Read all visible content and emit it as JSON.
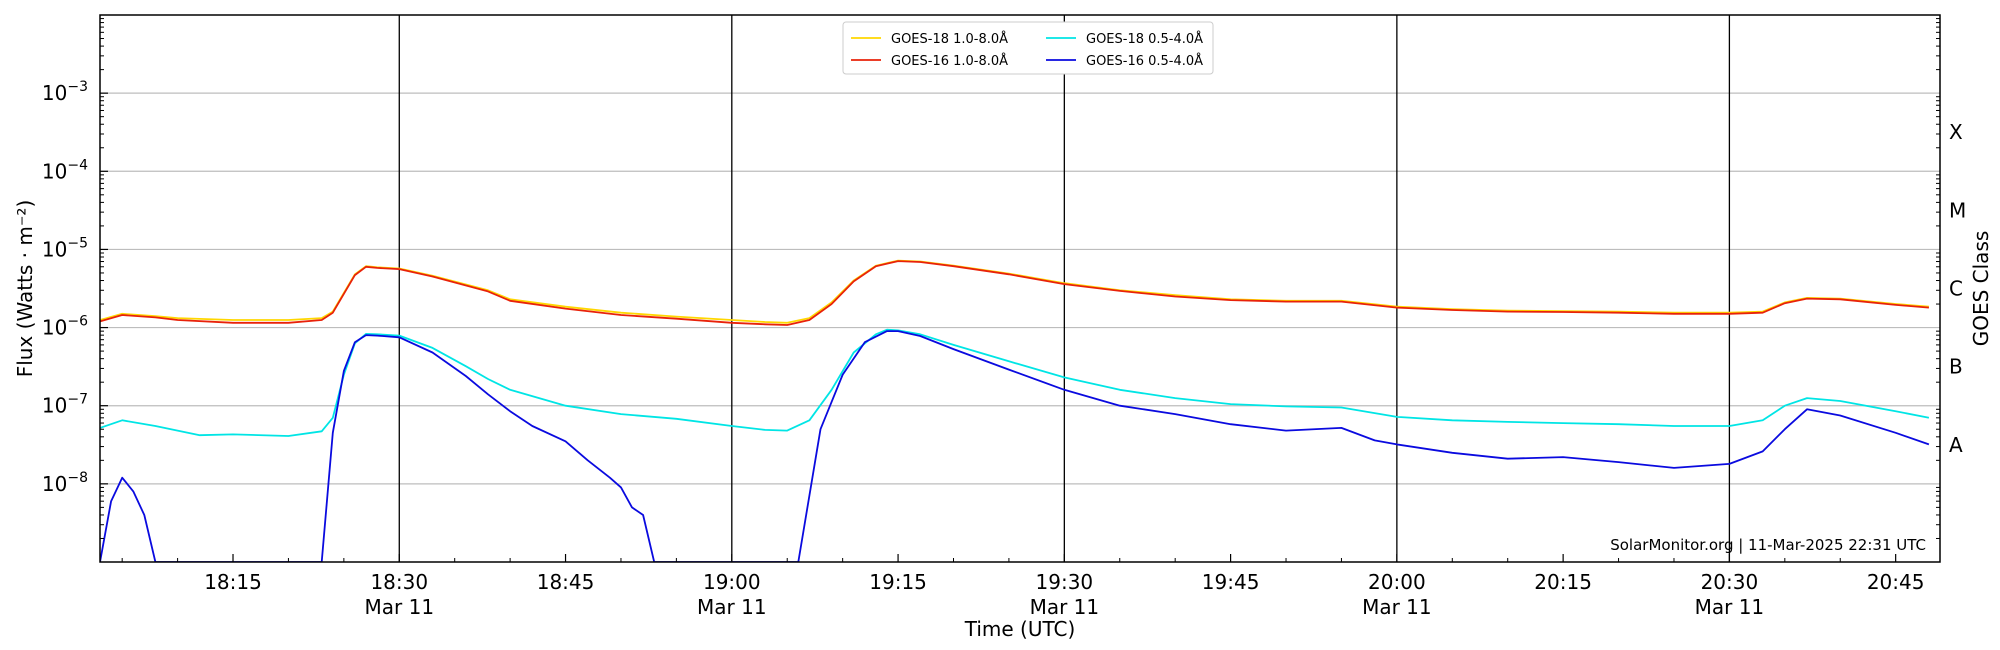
{
  "chart_data": {
    "type": "line",
    "title": "",
    "xlabel": "Time (UTC)",
    "ylabel": "Flux (Watts · m⁻²)",
    "right_ylabel": "GOES Class",
    "yscale": "log",
    "ylim": [
      1e-09,
      0.01
    ],
    "xlim": [
      "18:03",
      "20:49"
    ],
    "grid": "horizontal at decades",
    "legend_position": "top-center",
    "credit": "SolarMonitor.org | 11-Mar-2025 22:31 UTC",
    "y_ticks": [
      {
        "value": 0.001,
        "mantissa": "10",
        "exp": "−3"
      },
      {
        "value": 0.0001,
        "mantissa": "10",
        "exp": "−4"
      },
      {
        "value": 1e-05,
        "mantissa": "10",
        "exp": "−5"
      },
      {
        "value": 1e-06,
        "mantissa": "10",
        "exp": "−6"
      },
      {
        "value": 1e-07,
        "mantissa": "10",
        "exp": "−7"
      },
      {
        "value": 1e-08,
        "mantissa": "10",
        "exp": "−8"
      }
    ],
    "x_ticks": [
      {
        "time": "18:15",
        "label": "18:15",
        "sub": ""
      },
      {
        "time": "18:30",
        "label": "18:30",
        "sub": "Mar 11"
      },
      {
        "time": "18:45",
        "label": "18:45",
        "sub": ""
      },
      {
        "time": "19:00",
        "label": "19:00",
        "sub": "Mar 11"
      },
      {
        "time": "19:15",
        "label": "19:15",
        "sub": ""
      },
      {
        "time": "19:30",
        "label": "19:30",
        "sub": "Mar 11"
      },
      {
        "time": "19:45",
        "label": "19:45",
        "sub": ""
      },
      {
        "time": "20:00",
        "label": "20:00",
        "sub": "Mar 11"
      },
      {
        "time": "20:15",
        "label": "20:15",
        "sub": ""
      },
      {
        "time": "20:30",
        "label": "20:30",
        "sub": "Mar 11"
      },
      {
        "time": "20:45",
        "label": "20:45",
        "sub": ""
      }
    ],
    "vertical_lines": [
      "18:30",
      "19:00",
      "19:30",
      "20:00",
      "20:30"
    ],
    "goes_classes": [
      {
        "label": "X",
        "value": 0.000316
      },
      {
        "label": "M",
        "value": 3.16e-05
      },
      {
        "label": "C",
        "value": 3.16e-06
      },
      {
        "label": "B",
        "value": 3.16e-07
      },
      {
        "label": "A",
        "value": 3.16e-08
      }
    ],
    "series": [
      {
        "name": "GOES-18 1.0-8.0Å",
        "color": "#ffd700",
        "points": [
          [
            "18:03",
            1.25e-06
          ],
          [
            "18:05",
            1.5e-06
          ],
          [
            "18:08",
            1.4e-06
          ],
          [
            "18:10",
            1.32e-06
          ],
          [
            "18:15",
            1.25e-06
          ],
          [
            "18:20",
            1.25e-06
          ],
          [
            "18:23",
            1.32e-06
          ],
          [
            "18:24",
            1.6e-06
          ],
          [
            "18:26",
            4.8e-06
          ],
          [
            "18:27",
            6.1e-06
          ],
          [
            "18:28",
            5.9e-06
          ],
          [
            "18:30",
            5.7e-06
          ],
          [
            "18:33",
            4.6e-06
          ],
          [
            "18:38",
            3e-06
          ],
          [
            "18:40",
            2.3e-06
          ],
          [
            "18:45",
            1.85e-06
          ],
          [
            "18:50",
            1.55e-06
          ],
          [
            "18:55",
            1.38e-06
          ],
          [
            "19:00",
            1.25e-06
          ],
          [
            "19:03",
            1.18e-06
          ],
          [
            "19:05",
            1.15e-06
          ],
          [
            "19:07",
            1.32e-06
          ],
          [
            "19:09",
            2.1e-06
          ],
          [
            "19:11",
            4e-06
          ],
          [
            "19:13",
            6.2e-06
          ],
          [
            "19:15",
            7.2e-06
          ],
          [
            "19:17",
            7e-06
          ],
          [
            "19:20",
            6.2e-06
          ],
          [
            "19:25",
            4.9e-06
          ],
          [
            "19:30",
            3.7e-06
          ],
          [
            "19:35",
            3e-06
          ],
          [
            "19:40",
            2.6e-06
          ],
          [
            "19:45",
            2.3e-06
          ],
          [
            "19:50",
            2.2e-06
          ],
          [
            "19:55",
            2.2e-06
          ],
          [
            "20:00",
            1.85e-06
          ],
          [
            "20:05",
            1.72e-06
          ],
          [
            "20:10",
            1.65e-06
          ],
          [
            "20:15",
            1.62e-06
          ],
          [
            "20:20",
            1.6e-06
          ],
          [
            "20:25",
            1.55e-06
          ],
          [
            "20:30",
            1.55e-06
          ],
          [
            "20:33",
            1.6e-06
          ],
          [
            "20:35",
            2.1e-06
          ],
          [
            "20:37",
            2.4e-06
          ],
          [
            "20:40",
            2.35e-06
          ],
          [
            "20:45",
            2e-06
          ],
          [
            "20:48",
            1.85e-06
          ]
        ]
      },
      {
        "name": "GOES-16 1.0-8.0Å",
        "color": "#e8220a",
        "points": [
          [
            "18:03",
            1.2e-06
          ],
          [
            "18:05",
            1.45e-06
          ],
          [
            "18:08",
            1.35e-06
          ],
          [
            "18:10",
            1.25e-06
          ],
          [
            "18:15",
            1.15e-06
          ],
          [
            "18:20",
            1.15e-06
          ],
          [
            "18:23",
            1.25e-06
          ],
          [
            "18:24",
            1.55e-06
          ],
          [
            "18:26",
            4.7e-06
          ],
          [
            "18:27",
            6e-06
          ],
          [
            "18:28",
            5.8e-06
          ],
          [
            "18:30",
            5.6e-06
          ],
          [
            "18:33",
            4.5e-06
          ],
          [
            "18:38",
            2.9e-06
          ],
          [
            "18:40",
            2.2e-06
          ],
          [
            "18:45",
            1.75e-06
          ],
          [
            "18:50",
            1.45e-06
          ],
          [
            "18:55",
            1.3e-06
          ],
          [
            "19:00",
            1.15e-06
          ],
          [
            "19:03",
            1.1e-06
          ],
          [
            "19:05",
            1.08e-06
          ],
          [
            "19:07",
            1.25e-06
          ],
          [
            "19:09",
            2e-06
          ],
          [
            "19:11",
            3.9e-06
          ],
          [
            "19:13",
            6.1e-06
          ],
          [
            "19:15",
            7.1e-06
          ],
          [
            "19:17",
            6.9e-06
          ],
          [
            "19:20",
            6.1e-06
          ],
          [
            "19:25",
            4.8e-06
          ],
          [
            "19:30",
            3.6e-06
          ],
          [
            "19:35",
            2.95e-06
          ],
          [
            "19:40",
            2.5e-06
          ],
          [
            "19:45",
            2.25e-06
          ],
          [
            "19:50",
            2.15e-06
          ],
          [
            "19:55",
            2.15e-06
          ],
          [
            "20:00",
            1.8e-06
          ],
          [
            "20:05",
            1.68e-06
          ],
          [
            "20:10",
            1.6e-06
          ],
          [
            "20:15",
            1.58e-06
          ],
          [
            "20:20",
            1.55e-06
          ],
          [
            "20:25",
            1.5e-06
          ],
          [
            "20:30",
            1.5e-06
          ],
          [
            "20:33",
            1.55e-06
          ],
          [
            "20:35",
            2.05e-06
          ],
          [
            "20:37",
            2.35e-06
          ],
          [
            "20:40",
            2.3e-06
          ],
          [
            "20:45",
            1.95e-06
          ],
          [
            "20:48",
            1.8e-06
          ]
        ]
      },
      {
        "name": "GOES-18 0.5-4.0Å",
        "color": "#00e5e5",
        "points": [
          [
            "18:03",
            5.2e-08
          ],
          [
            "18:05",
            6.5e-08
          ],
          [
            "18:08",
            5.5e-08
          ],
          [
            "18:10",
            4.8e-08
          ],
          [
            "18:12",
            4.2e-08
          ],
          [
            "18:15",
            4.3e-08
          ],
          [
            "18:20",
            4.1e-08
          ],
          [
            "18:23",
            4.7e-08
          ],
          [
            "18:24",
            7e-08
          ],
          [
            "18:25",
            2.5e-07
          ],
          [
            "18:26",
            6.3e-07
          ],
          [
            "18:27",
            8.3e-07
          ],
          [
            "18:28",
            8.2e-07
          ],
          [
            "18:30",
            7.9e-07
          ],
          [
            "18:33",
            5.5e-07
          ],
          [
            "18:36",
            3.2e-07
          ],
          [
            "18:38",
            2.2e-07
          ],
          [
            "18:40",
            1.6e-07
          ],
          [
            "18:45",
            1e-07
          ],
          [
            "18:50",
            7.8e-08
          ],
          [
            "18:55",
            6.8e-08
          ],
          [
            "19:00",
            5.5e-08
          ],
          [
            "19:03",
            4.9e-08
          ],
          [
            "19:05",
            4.8e-08
          ],
          [
            "19:07",
            6.5e-08
          ],
          [
            "19:09",
            1.6e-07
          ],
          [
            "19:11",
            4.8e-07
          ],
          [
            "19:13",
            8.2e-07
          ],
          [
            "19:14",
            9.4e-07
          ],
          [
            "19:15",
            9.2e-07
          ],
          [
            "19:17",
            8.2e-07
          ],
          [
            "19:20",
            6e-07
          ],
          [
            "19:25",
            3.7e-07
          ],
          [
            "19:30",
            2.3e-07
          ],
          [
            "19:35",
            1.6e-07
          ],
          [
            "19:40",
            1.25e-07
          ],
          [
            "19:45",
            1.05e-07
          ],
          [
            "19:50",
            9.8e-08
          ],
          [
            "19:55",
            9.5e-08
          ],
          [
            "20:00",
            7.2e-08
          ],
          [
            "20:05",
            6.5e-08
          ],
          [
            "20:10",
            6.2e-08
          ],
          [
            "20:15",
            6e-08
          ],
          [
            "20:20",
            5.8e-08
          ],
          [
            "20:25",
            5.5e-08
          ],
          [
            "20:30",
            5.5e-08
          ],
          [
            "20:33",
            6.5e-08
          ],
          [
            "20:35",
            1e-07
          ],
          [
            "20:37",
            1.25e-07
          ],
          [
            "20:40",
            1.15e-07
          ],
          [
            "20:45",
            8.5e-08
          ],
          [
            "20:48",
            7e-08
          ]
        ]
      },
      {
        "name": "GOES-16 0.5-4.0Å",
        "color": "#0a0adf",
        "points": [
          [
            "18:03",
            1e-09
          ],
          [
            "18:04",
            6e-09
          ],
          [
            "18:05",
            1.2e-08
          ],
          [
            "18:06",
            8e-09
          ],
          [
            "18:07",
            4e-09
          ],
          [
            "18:08",
            1e-09
          ],
          [
            "18:23",
            1e-09
          ],
          [
            "18:24",
            4.5e-08
          ],
          [
            "18:25",
            2.8e-07
          ],
          [
            "18:26",
            6.5e-07
          ],
          [
            "18:27",
            8e-07
          ],
          [
            "18:28",
            7.9e-07
          ],
          [
            "18:30",
            7.5e-07
          ],
          [
            "18:33",
            4.8e-07
          ],
          [
            "18:36",
            2.4e-07
          ],
          [
            "18:38",
            1.4e-07
          ],
          [
            "18:40",
            8.5e-08
          ],
          [
            "18:42",
            5.5e-08
          ],
          [
            "18:45",
            3.5e-08
          ],
          [
            "18:47",
            2e-08
          ],
          [
            "18:49",
            1.2e-08
          ],
          [
            "18:50",
            9e-09
          ],
          [
            "18:51",
            5e-09
          ],
          [
            "18:52",
            4e-09
          ],
          [
            "18:53",
            1e-09
          ],
          [
            "19:06",
            1e-09
          ],
          [
            "19:08",
            5e-08
          ],
          [
            "19:10",
            2.5e-07
          ],
          [
            "19:12",
            6.5e-07
          ],
          [
            "19:14",
            9e-07
          ],
          [
            "19:15",
            9e-07
          ],
          [
            "19:17",
            7.8e-07
          ],
          [
            "19:20",
            5.3e-07
          ],
          [
            "19:25",
            2.9e-07
          ],
          [
            "19:30",
            1.6e-07
          ],
          [
            "19:35",
            1e-07
          ],
          [
            "19:40",
            7.8e-08
          ],
          [
            "19:45",
            5.8e-08
          ],
          [
            "19:50",
            4.8e-08
          ],
          [
            "19:55",
            5.2e-08
          ],
          [
            "19:58",
            3.6e-08
          ],
          [
            "20:00",
            3.2e-08
          ],
          [
            "20:05",
            2.5e-08
          ],
          [
            "20:10",
            2.1e-08
          ],
          [
            "20:15",
            2.2e-08
          ],
          [
            "20:20",
            1.9e-08
          ],
          [
            "20:25",
            1.6e-08
          ],
          [
            "20:30",
            1.8e-08
          ],
          [
            "20:33",
            2.6e-08
          ],
          [
            "20:35",
            5e-08
          ],
          [
            "20:37",
            9e-08
          ],
          [
            "20:40",
            7.5e-08
          ],
          [
            "20:45",
            4.5e-08
          ],
          [
            "20:48",
            3.2e-08
          ]
        ]
      }
    ]
  }
}
